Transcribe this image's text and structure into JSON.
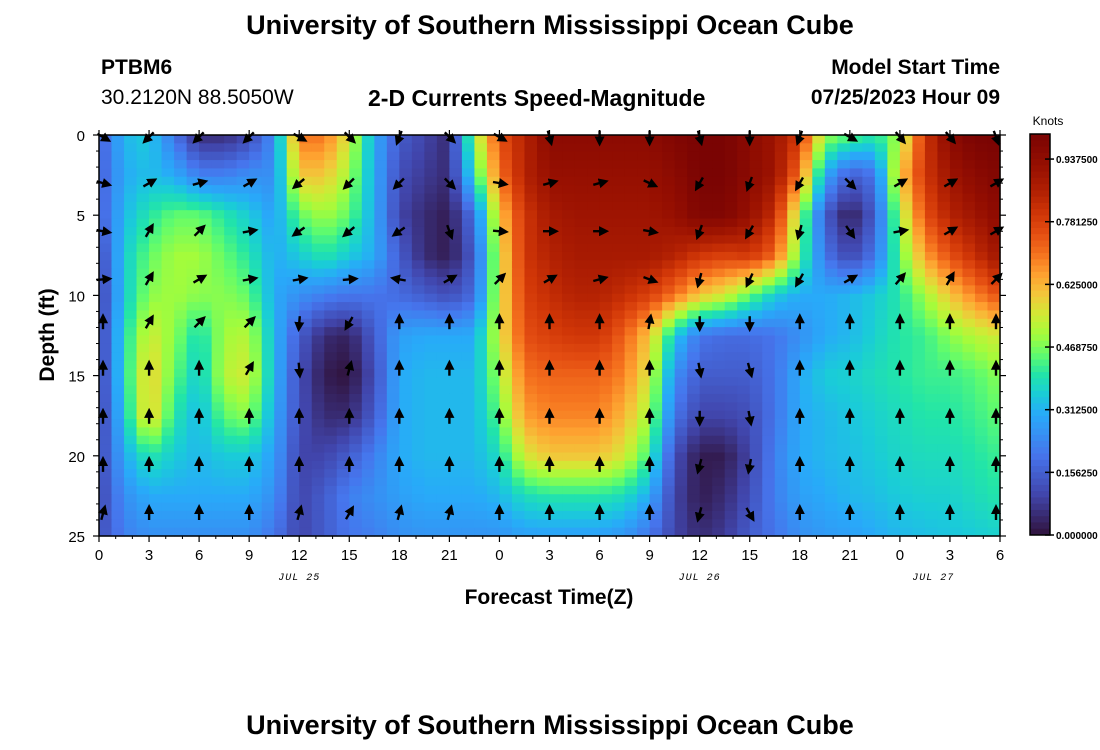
{
  "titles": {
    "main": "University of Southern Mississippi Ocean Cube",
    "repeat": "University of Southern Mississippi Ocean Cube"
  },
  "station": {
    "id": "PTBM6",
    "coords": "30.2120N  88.5050W"
  },
  "subtitle": "2-D Currents Speed-Magnitude",
  "model": {
    "label": "Model Start Time",
    "value": "07/25/2023 Hour 09"
  },
  "chart_data": {
    "type": "heatmap",
    "title": "2-D Currents Speed-Magnitude",
    "xlabel": "Forecast Time(Z)",
    "ylabel": "Depth (ft)",
    "x_tick_labels": [
      "0",
      "3",
      "6",
      "9",
      "12",
      "15",
      "18",
      "21",
      "0",
      "3",
      "6",
      "9",
      "12",
      "15",
      "18",
      "21",
      "0",
      "3",
      "6"
    ],
    "x_range_hours": [
      0,
      54
    ],
    "date_labels": [
      {
        "text": "JUL 25",
        "hour": 12
      },
      {
        "text": "JUL 26",
        "hour": 36
      },
      {
        "text": "JUL 27",
        "hour": 50
      }
    ],
    "y_ticks": [
      0,
      5,
      10,
      15,
      20,
      25
    ],
    "ylim": [
      25,
      0
    ],
    "colorbar": {
      "title": "Knots",
      "range": [
        0,
        1.0
      ],
      "tick_labels": [
        "0.000000",
        "0.156250",
        "0.312500",
        "0.468750",
        "0.625000",
        "0.781250",
        "0.937500"
      ],
      "tick_values": [
        0,
        0.15625,
        0.3125,
        0.46875,
        0.625,
        0.78125,
        0.9375
      ],
      "colormap": "turbo"
    },
    "vector_hours": [
      0,
      3,
      6,
      9,
      12,
      15,
      18,
      21,
      24,
      27,
      30,
      33,
      36,
      39,
      42,
      45,
      48,
      51,
      54
    ],
    "vector_depths": [
      0,
      3,
      6,
      9,
      11.7,
      14.6,
      17.6,
      20.6,
      23.6
    ],
    "speed_field": {
      "hours": [
        0,
        1.5,
        3,
        4.5,
        6,
        7.5,
        9,
        10.5,
        12,
        13.5,
        15,
        16.5,
        18,
        19.5,
        21,
        22.5,
        24,
        25.5,
        27,
        28.5,
        30,
        31.5,
        33,
        34.5,
        36,
        37.5,
        39,
        40.5,
        42,
        43.5,
        45,
        46.5,
        48,
        49.5,
        51,
        52.5,
        54
      ],
      "depths": [
        0,
        2.5,
        5,
        7.5,
        10,
        12.5,
        15,
        17.5,
        20,
        22.5,
        25
      ],
      "knots": [
        [
          0.15,
          0.32,
          0.35,
          0.2,
          0.05,
          0.05,
          0.1,
          0.25,
          0.7,
          0.7,
          0.55,
          0.3,
          0.15,
          0.1,
          0.05,
          0.5,
          0.75,
          0.85,
          0.95,
          0.95,
          0.95,
          0.95,
          0.95,
          0.98,
          1.0,
          1.0,
          0.95,
          0.9,
          0.8,
          0.5,
          0.45,
          0.4,
          0.5,
          0.8,
          0.95,
          1.0,
          1.0
        ],
        [
          0.15,
          0.3,
          0.33,
          0.3,
          0.22,
          0.22,
          0.25,
          0.25,
          0.6,
          0.6,
          0.5,
          0.3,
          0.12,
          0.08,
          0.05,
          0.4,
          0.7,
          0.85,
          0.92,
          0.92,
          0.92,
          0.92,
          0.92,
          0.95,
          1.0,
          1.0,
          0.95,
          0.9,
          0.7,
          0.3,
          0.15,
          0.2,
          0.6,
          0.8,
          0.9,
          0.95,
          0.98
        ],
        [
          0.15,
          0.32,
          0.4,
          0.45,
          0.45,
          0.4,
          0.35,
          0.28,
          0.45,
          0.5,
          0.45,
          0.3,
          0.1,
          0.05,
          0.02,
          0.2,
          0.6,
          0.8,
          0.88,
          0.9,
          0.9,
          0.9,
          0.9,
          0.92,
          0.98,
          0.98,
          0.92,
          0.82,
          0.5,
          0.15,
          0.02,
          0.15,
          0.5,
          0.75,
          0.85,
          0.9,
          0.95
        ],
        [
          0.1,
          0.35,
          0.45,
          0.5,
          0.5,
          0.45,
          0.4,
          0.3,
          0.35,
          0.4,
          0.35,
          0.3,
          0.15,
          0.05,
          0.02,
          0.15,
          0.55,
          0.8,
          0.85,
          0.88,
          0.88,
          0.88,
          0.88,
          0.85,
          0.8,
          0.78,
          0.8,
          0.72,
          0.45,
          0.2,
          0.1,
          0.2,
          0.45,
          0.65,
          0.75,
          0.82,
          0.9
        ],
        [
          0.08,
          0.35,
          0.48,
          0.5,
          0.48,
          0.48,
          0.45,
          0.3,
          0.25,
          0.22,
          0.2,
          0.2,
          0.18,
          0.15,
          0.12,
          0.18,
          0.55,
          0.78,
          0.82,
          0.85,
          0.85,
          0.82,
          0.78,
          0.7,
          0.6,
          0.55,
          0.45,
          0.35,
          0.3,
          0.3,
          0.32,
          0.35,
          0.4,
          0.5,
          0.6,
          0.68,
          0.75
        ],
        [
          0.08,
          0.38,
          0.55,
          0.48,
          0.38,
          0.5,
          0.52,
          0.32,
          0.15,
          0.05,
          0.03,
          0.15,
          0.28,
          0.3,
          0.3,
          0.3,
          0.55,
          0.75,
          0.78,
          0.8,
          0.8,
          0.72,
          0.6,
          0.35,
          0.2,
          0.18,
          0.18,
          0.2,
          0.25,
          0.3,
          0.32,
          0.36,
          0.4,
          0.42,
          0.48,
          0.52,
          0.55
        ],
        [
          0.08,
          0.38,
          0.6,
          0.45,
          0.35,
          0.52,
          0.55,
          0.32,
          0.12,
          0.02,
          0.0,
          0.12,
          0.3,
          0.32,
          0.32,
          0.32,
          0.5,
          0.7,
          0.72,
          0.72,
          0.72,
          0.68,
          0.55,
          0.25,
          0.15,
          0.15,
          0.15,
          0.2,
          0.3,
          0.35,
          0.36,
          0.38,
          0.4,
          0.42,
          0.42,
          0.44,
          0.48
        ],
        [
          0.08,
          0.35,
          0.6,
          0.4,
          0.32,
          0.45,
          0.48,
          0.3,
          0.12,
          0.05,
          0.05,
          0.15,
          0.3,
          0.32,
          0.32,
          0.32,
          0.45,
          0.65,
          0.68,
          0.68,
          0.68,
          0.62,
          0.5,
          0.2,
          0.1,
          0.1,
          0.12,
          0.2,
          0.3,
          0.32,
          0.34,
          0.36,
          0.38,
          0.4,
          0.4,
          0.42,
          0.45
        ],
        [
          0.1,
          0.3,
          0.4,
          0.35,
          0.32,
          0.35,
          0.35,
          0.28,
          0.1,
          0.1,
          0.15,
          0.22,
          0.3,
          0.32,
          0.32,
          0.32,
          0.38,
          0.55,
          0.6,
          0.6,
          0.6,
          0.55,
          0.42,
          0.12,
          0.02,
          0.02,
          0.1,
          0.22,
          0.3,
          0.32,
          0.33,
          0.35,
          0.37,
          0.38,
          0.38,
          0.4,
          0.42
        ],
        [
          0.1,
          0.25,
          0.3,
          0.3,
          0.3,
          0.3,
          0.3,
          0.25,
          0.1,
          0.15,
          0.22,
          0.25,
          0.28,
          0.3,
          0.3,
          0.3,
          0.32,
          0.38,
          0.4,
          0.4,
          0.4,
          0.38,
          0.3,
          0.1,
          0.02,
          0.05,
          0.12,
          0.22,
          0.28,
          0.3,
          0.32,
          0.33,
          0.35,
          0.36,
          0.36,
          0.38,
          0.4
        ],
        [
          0.12,
          0.22,
          0.25,
          0.25,
          0.25,
          0.25,
          0.25,
          0.2,
          0.1,
          0.15,
          0.2,
          0.22,
          0.25,
          0.26,
          0.26,
          0.26,
          0.26,
          0.28,
          0.28,
          0.28,
          0.28,
          0.26,
          0.2,
          0.1,
          0.05,
          0.08,
          0.15,
          0.2,
          0.25,
          0.27,
          0.28,
          0.3,
          0.32,
          0.33,
          0.34,
          0.35,
          0.36
        ]
      ]
    },
    "direction_field": {
      "note": "current direction in degrees clockwise from north (arrow points toward)",
      "hours": [
        0,
        3,
        6,
        9,
        12,
        15,
        18,
        21,
        24,
        27,
        30,
        33,
        36,
        39,
        42,
        45,
        48,
        51,
        54
      ],
      "depths": [
        0,
        3,
        6,
        9,
        11.7,
        14.6,
        17.6,
        20.6,
        23.6
      ],
      "deg": [
        [
          120,
          225,
          225,
          225,
          120,
          135,
          200,
          135,
          120,
          165,
          180,
          180,
          165,
          180,
          200,
          120,
          140,
          140,
          160
        ],
        [
          105,
          60,
          75,
          60,
          230,
          225,
          225,
          135,
          100,
          75,
          75,
          115,
          210,
          200,
          210,
          135,
          60,
          60,
          60
        ],
        [
          100,
          30,
          45,
          80,
          235,
          230,
          235,
          160,
          95,
          90,
          90,
          100,
          200,
          210,
          195,
          145,
          80,
          60,
          60
        ],
        [
          85,
          30,
          60,
          80,
          80,
          85,
          280,
          60,
          45,
          60,
          75,
          110,
          195,
          205,
          210,
          60,
          40,
          30,
          45
        ],
        [
          0,
          30,
          45,
          45,
          185,
          210,
          0,
          0,
          0,
          0,
          0,
          10,
          180,
          180,
          0,
          0,
          0,
          0,
          0
        ],
        [
          0,
          0,
          0,
          30,
          175,
          15,
          0,
          0,
          0,
          0,
          0,
          0,
          170,
          165,
          0,
          0,
          0,
          0,
          0
        ],
        [
          0,
          0,
          0,
          0,
          0,
          0,
          0,
          0,
          0,
          0,
          0,
          0,
          180,
          170,
          0,
          0,
          0,
          0,
          0
        ],
        [
          0,
          0,
          0,
          0,
          0,
          0,
          0,
          0,
          0,
          0,
          0,
          0,
          195,
          190,
          0,
          0,
          0,
          0,
          0
        ],
        [
          15,
          0,
          0,
          0,
          15,
          30,
          15,
          15,
          0,
          0,
          0,
          0,
          195,
          150,
          0,
          0,
          0,
          0,
          0
        ]
      ]
    }
  }
}
